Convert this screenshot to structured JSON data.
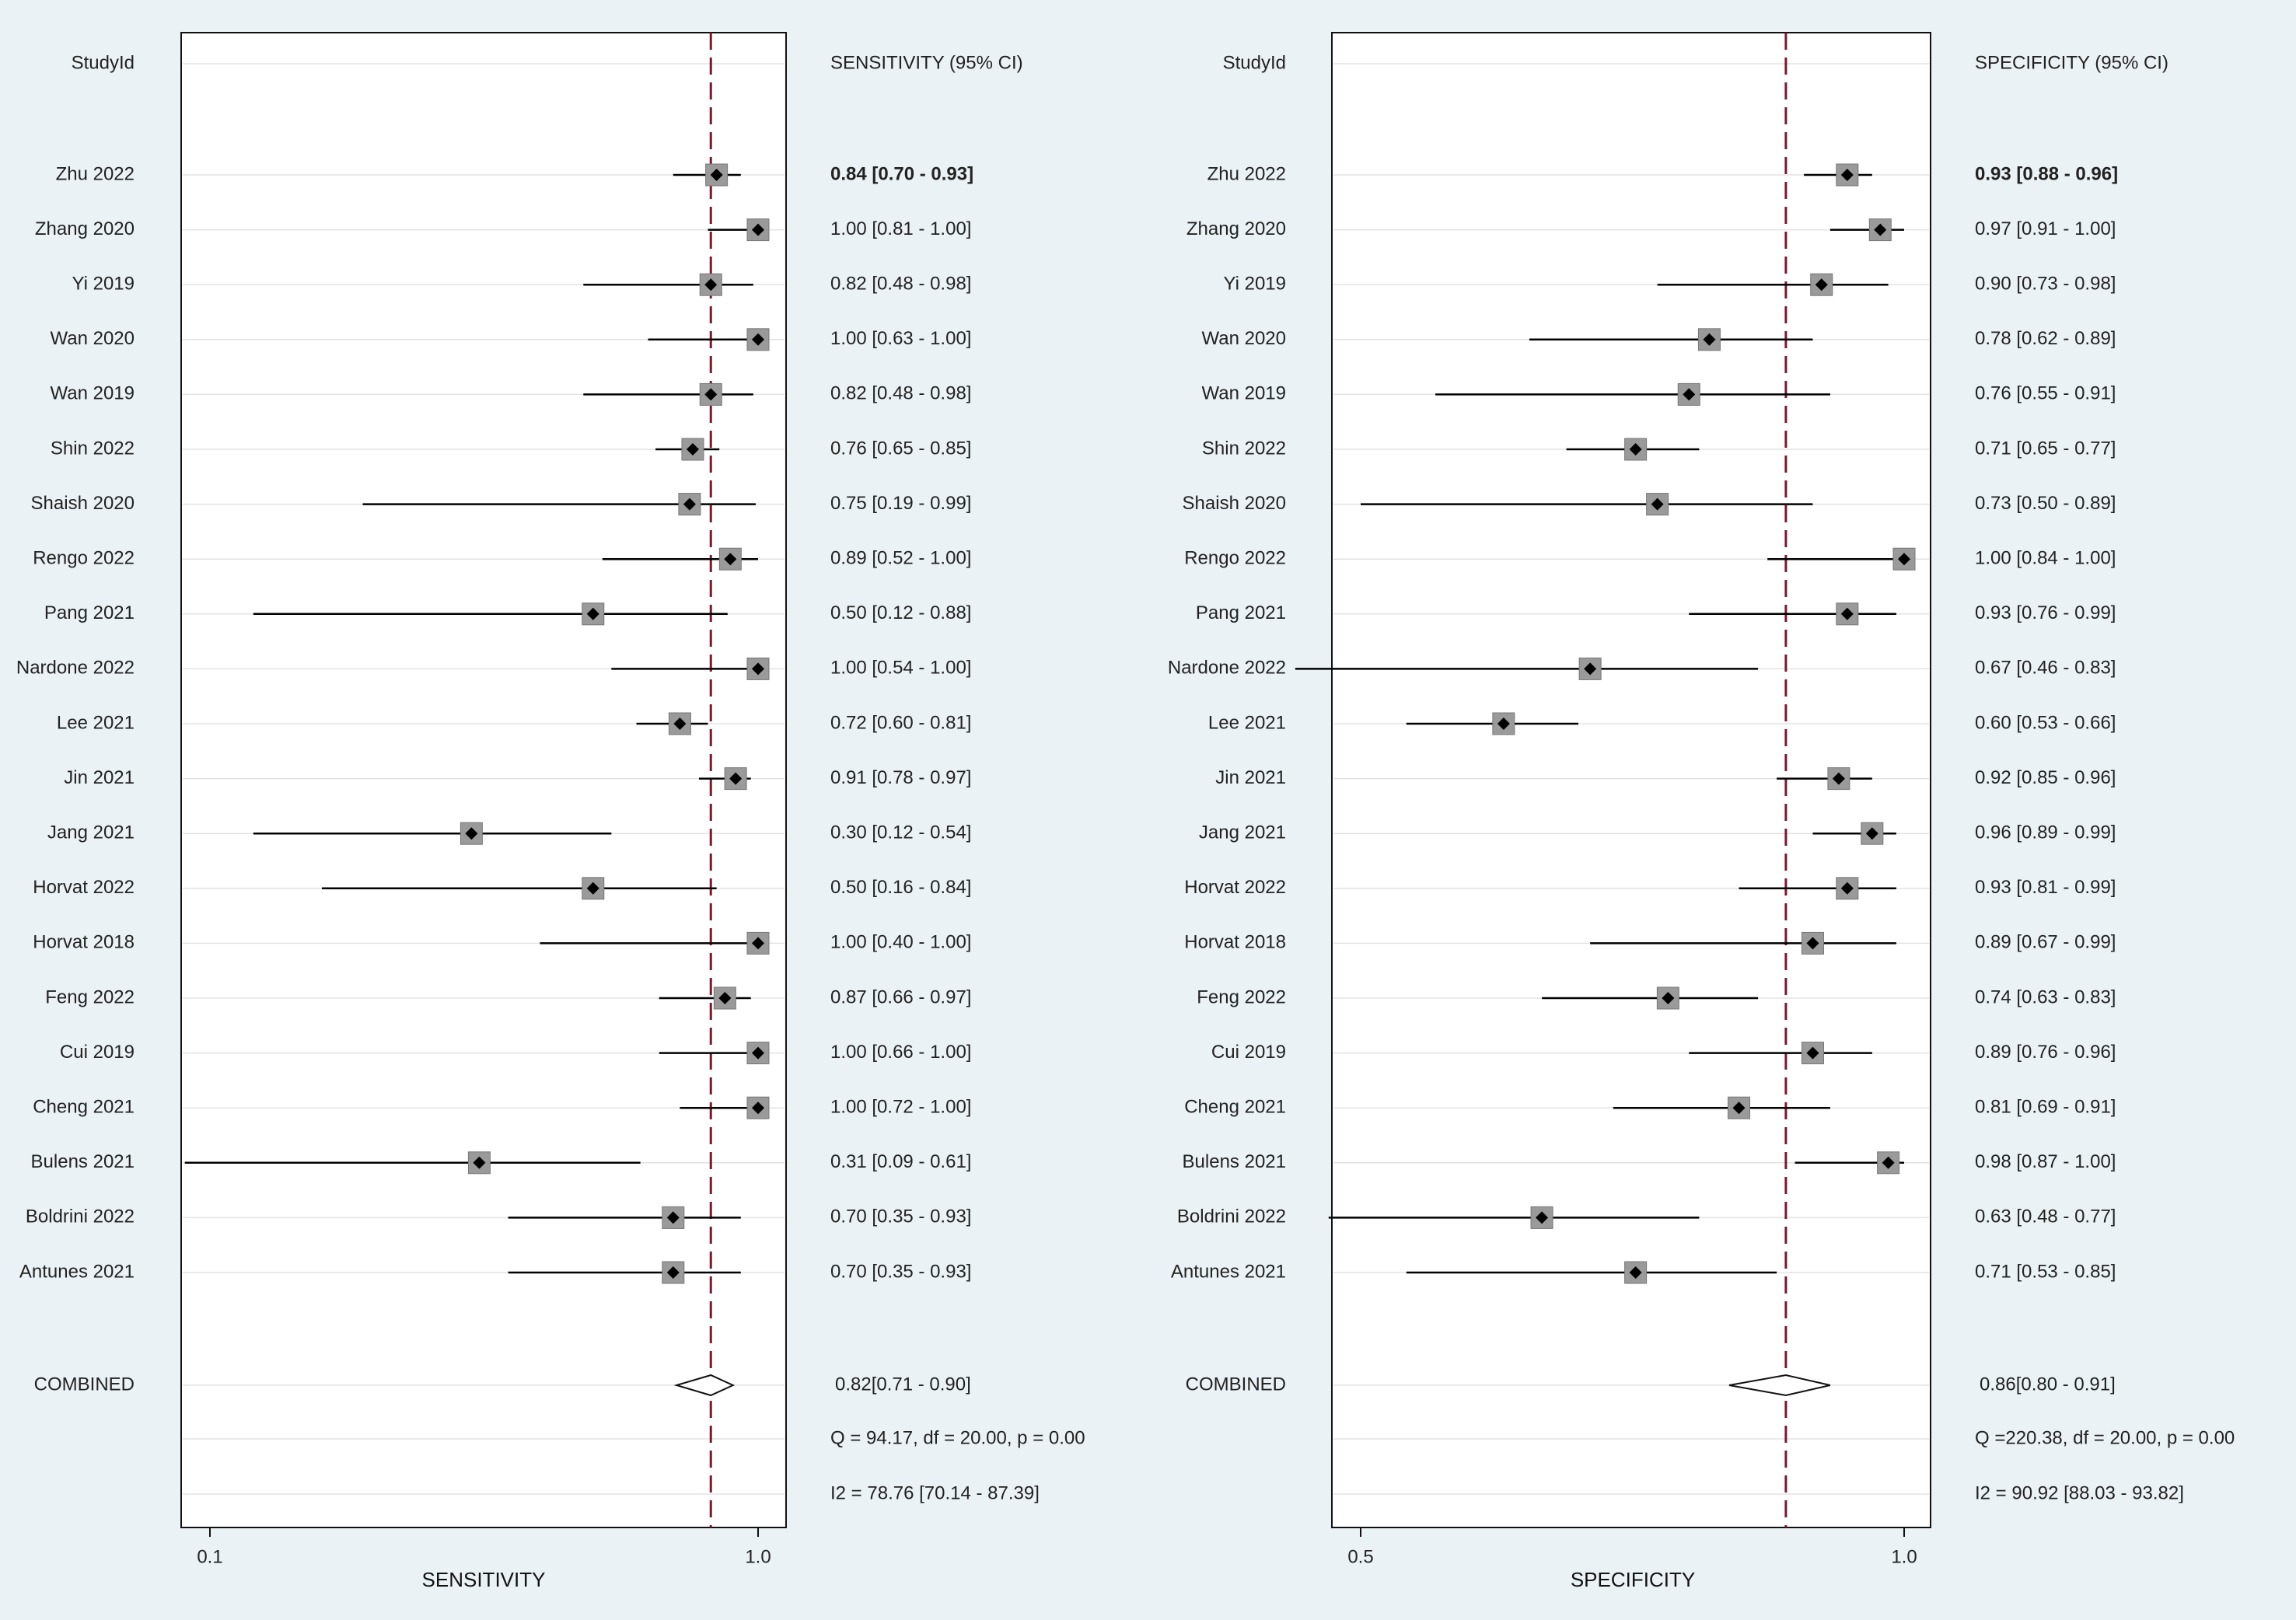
{
  "chart_data": [
    {
      "type": "forest",
      "column_header": "StudyId",
      "ci_header": "SENSITIVITY (95% CI)",
      "xlabel": "SENSITIVITY",
      "scale": "log",
      "xlim": [
        0.1,
        1.0
      ],
      "xticks": [
        "0.1",
        "1.0"
      ],
      "reference_line": 0.82,
      "studies": [
        {
          "name": "Zhu 2022",
          "est": 0.84,
          "lo": 0.7,
          "hi": 0.93,
          "ci_text": "0.84 [0.70 - 0.93]",
          "bold": true
        },
        {
          "name": "Zhang 2020",
          "est": 1.0,
          "lo": 0.81,
          "hi": 1.0,
          "ci_text": "1.00 [0.81 - 1.00]"
        },
        {
          "name": "Yi 2019",
          "est": 0.82,
          "lo": 0.48,
          "hi": 0.98,
          "ci_text": "0.82 [0.48 - 0.98]"
        },
        {
          "name": "Wan 2020",
          "est": 1.0,
          "lo": 0.63,
          "hi": 1.0,
          "ci_text": "1.00 [0.63 - 1.00]"
        },
        {
          "name": "Wan 2019",
          "est": 0.82,
          "lo": 0.48,
          "hi": 0.98,
          "ci_text": "0.82 [0.48 - 0.98]"
        },
        {
          "name": "Shin 2022",
          "est": 0.76,
          "lo": 0.65,
          "hi": 0.85,
          "ci_text": "0.76 [0.65 - 0.85]"
        },
        {
          "name": "Shaish 2020",
          "est": 0.75,
          "lo": 0.19,
          "hi": 0.99,
          "ci_text": "0.75 [0.19 - 0.99]"
        },
        {
          "name": "Rengo 2022",
          "est": 0.89,
          "lo": 0.52,
          "hi": 1.0,
          "ci_text": "0.89 [0.52 - 1.00]"
        },
        {
          "name": "Pang 2021",
          "est": 0.5,
          "lo": 0.12,
          "hi": 0.88,
          "ci_text": "0.50 [0.12 - 0.88]"
        },
        {
          "name": "Nardone 2022",
          "est": 1.0,
          "lo": 0.54,
          "hi": 1.0,
          "ci_text": "1.00 [0.54 - 1.00]"
        },
        {
          "name": "Lee 2021",
          "est": 0.72,
          "lo": 0.6,
          "hi": 0.81,
          "ci_text": "0.72 [0.60 - 0.81]"
        },
        {
          "name": "Jin 2021",
          "est": 0.91,
          "lo": 0.78,
          "hi": 0.97,
          "ci_text": "0.91 [0.78 - 0.97]"
        },
        {
          "name": "Jang 2021",
          "est": 0.3,
          "lo": 0.12,
          "hi": 0.54,
          "ci_text": "0.30 [0.12 - 0.54]"
        },
        {
          "name": "Horvat 2022",
          "est": 0.5,
          "lo": 0.16,
          "hi": 0.84,
          "ci_text": "0.50 [0.16 - 0.84]"
        },
        {
          "name": "Horvat 2018",
          "est": 1.0,
          "lo": 0.4,
          "hi": 1.0,
          "ci_text": "1.00 [0.40 - 1.00]"
        },
        {
          "name": "Feng 2022",
          "est": 0.87,
          "lo": 0.66,
          "hi": 0.97,
          "ci_text": "0.87 [0.66 - 0.97]"
        },
        {
          "name": "Cui 2019",
          "est": 1.0,
          "lo": 0.66,
          "hi": 1.0,
          "ci_text": "1.00 [0.66 - 1.00]"
        },
        {
          "name": "Cheng 2021",
          "est": 1.0,
          "lo": 0.72,
          "hi": 1.0,
          "ci_text": "1.00 [0.72 - 1.00]"
        },
        {
          "name": "Bulens 2021",
          "est": 0.31,
          "lo": 0.09,
          "hi": 0.61,
          "ci_text": "0.31 [0.09 - 0.61]"
        },
        {
          "name": "Boldrini 2022",
          "est": 0.7,
          "lo": 0.35,
          "hi": 0.93,
          "ci_text": "0.70 [0.35 - 0.93]"
        },
        {
          "name": "Antunes 2021",
          "est": 0.7,
          "lo": 0.35,
          "hi": 0.93,
          "ci_text": "0.70 [0.35 - 0.93]"
        }
      ],
      "combined": {
        "name": "COMBINED",
        "est": 0.82,
        "lo": 0.71,
        "hi": 0.9,
        "ci_text": "0.82[0.71 - 0.90]"
      },
      "q_text": "Q = 94.17, df = 20.00, p =  0.00",
      "i2_text": "I2 = 78.76 [70.14 - 87.39]"
    },
    {
      "type": "forest",
      "column_header": "StudyId",
      "ci_header": "SPECIFICITY (95% CI)",
      "xlabel": "SPECIFICITY",
      "scale": "log",
      "xlim": [
        0.5,
        1.0
      ],
      "xticks": [
        "0.5",
        "1.0"
      ],
      "reference_line": 0.86,
      "studies": [
        {
          "name": "Zhu 2022",
          "est": 0.93,
          "lo": 0.88,
          "hi": 0.96,
          "ci_text": "0.93 [0.88 - 0.96]",
          "bold": true
        },
        {
          "name": "Zhang 2020",
          "est": 0.97,
          "lo": 0.91,
          "hi": 1.0,
          "ci_text": "0.97 [0.91 - 1.00]"
        },
        {
          "name": "Yi 2019",
          "est": 0.9,
          "lo": 0.73,
          "hi": 0.98,
          "ci_text": "0.90 [0.73 - 0.98]"
        },
        {
          "name": "Wan 2020",
          "est": 0.78,
          "lo": 0.62,
          "hi": 0.89,
          "ci_text": "0.78 [0.62 - 0.89]"
        },
        {
          "name": "Wan 2019",
          "est": 0.76,
          "lo": 0.55,
          "hi": 0.91,
          "ci_text": "0.76 [0.55 - 0.91]"
        },
        {
          "name": "Shin 2022",
          "est": 0.71,
          "lo": 0.65,
          "hi": 0.77,
          "ci_text": "0.71 [0.65 - 0.77]"
        },
        {
          "name": "Shaish 2020",
          "est": 0.73,
          "lo": 0.5,
          "hi": 0.89,
          "ci_text": "0.73 [0.50 - 0.89]"
        },
        {
          "name": "Rengo 2022",
          "est": 1.0,
          "lo": 0.84,
          "hi": 1.0,
          "ci_text": "1.00 [0.84 - 1.00]"
        },
        {
          "name": "Pang 2021",
          "est": 0.93,
          "lo": 0.76,
          "hi": 0.99,
          "ci_text": "0.93 [0.76 - 0.99]"
        },
        {
          "name": "Nardone 2022",
          "est": 0.67,
          "lo": 0.46,
          "hi": 0.83,
          "ci_text": "0.67 [0.46 - 0.83]"
        },
        {
          "name": "Lee 2021",
          "est": 0.6,
          "lo": 0.53,
          "hi": 0.66,
          "ci_text": "0.60 [0.53 - 0.66]"
        },
        {
          "name": "Jin 2021",
          "est": 0.92,
          "lo": 0.85,
          "hi": 0.96,
          "ci_text": "0.92 [0.85 - 0.96]"
        },
        {
          "name": "Jang 2021",
          "est": 0.96,
          "lo": 0.89,
          "hi": 0.99,
          "ci_text": "0.96 [0.89 - 0.99]"
        },
        {
          "name": "Horvat 2022",
          "est": 0.93,
          "lo": 0.81,
          "hi": 0.99,
          "ci_text": "0.93 [0.81 - 0.99]"
        },
        {
          "name": "Horvat 2018",
          "est": 0.89,
          "lo": 0.67,
          "hi": 0.99,
          "ci_text": "0.89 [0.67 - 0.99]"
        },
        {
          "name": "Feng 2022",
          "est": 0.74,
          "lo": 0.63,
          "hi": 0.83,
          "ci_text": "0.74 [0.63 - 0.83]"
        },
        {
          "name": "Cui 2019",
          "est": 0.89,
          "lo": 0.76,
          "hi": 0.96,
          "ci_text": "0.89 [0.76 - 0.96]"
        },
        {
          "name": "Cheng 2021",
          "est": 0.81,
          "lo": 0.69,
          "hi": 0.91,
          "ci_text": "0.81 [0.69 - 0.91]"
        },
        {
          "name": "Bulens 2021",
          "est": 0.98,
          "lo": 0.87,
          "hi": 1.0,
          "ci_text": "0.98 [0.87 - 1.00]"
        },
        {
          "name": "Boldrini 2022",
          "est": 0.63,
          "lo": 0.48,
          "hi": 0.77,
          "ci_text": "0.63 [0.48 - 0.77]"
        },
        {
          "name": "Antunes 2021",
          "est": 0.71,
          "lo": 0.53,
          "hi": 0.85,
          "ci_text": "0.71 [0.53 - 0.85]"
        }
      ],
      "combined": {
        "name": "COMBINED",
        "est": 0.86,
        "lo": 0.8,
        "hi": 0.91,
        "ci_text": "0.86[0.80 - 0.91]"
      },
      "q_text": "Q =220.38, df = 20.00, p =  0.00",
      "i2_text": "I2 = 90.92 [88.03 - 93.82]"
    }
  ],
  "colors": {
    "background": "#eaf2f6",
    "panel": "#ffffff",
    "reference_line": "#7b1830",
    "marker_box": "#9a9a9a",
    "marker_dot": "#000000",
    "ci_line": "#000000"
  }
}
